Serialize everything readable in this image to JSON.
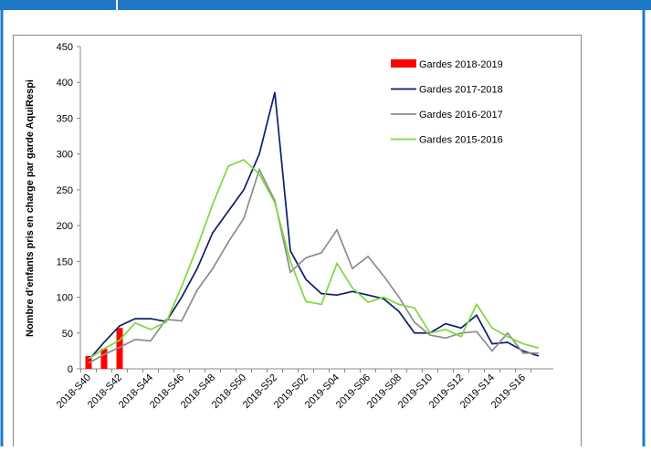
{
  "chart_data": {
    "type": "line",
    "y_label": "Nombre d’enfants pris en charge par garde  AquiRespi",
    "categories": [
      "2018-S40",
      null,
      "2018-S42",
      null,
      "2018-S44",
      null,
      "2018-S46",
      null,
      "2018-S48",
      null,
      "2018-S50",
      null,
      "2018-S52",
      null,
      "2019-S02",
      null,
      "2019-S04",
      null,
      "2019-S06",
      null,
      "2019-S08",
      null,
      "2019-S10",
      null,
      "2019-S12",
      null,
      "2019-S14",
      null,
      "2019-S16",
      null
    ],
    "ylim": [
      0,
      450
    ],
    "yticks": [
      0,
      50,
      100,
      150,
      200,
      250,
      300,
      350,
      400,
      450
    ],
    "series": [
      {
        "name": "Gardes 2018-2019",
        "type": "bar",
        "color": "#ff0000",
        "values": [
          18,
          28,
          57,
          null,
          null,
          null,
          null,
          null,
          null,
          null,
          null,
          null,
          null,
          null,
          null,
          null,
          null,
          null,
          null,
          null,
          null,
          null,
          null,
          null,
          null,
          null,
          null,
          null,
          null,
          null
        ]
      },
      {
        "name": "Gardes 2017-2018",
        "type": "line",
        "color": "#0d1f6b",
        "values": [
          12,
          37,
          60,
          70,
          70,
          66,
          100,
          140,
          190,
          220,
          250,
          300,
          386,
          165,
          125,
          105,
          103,
          108,
          103,
          98,
          80,
          50,
          50,
          63,
          57,
          75,
          35,
          37,
          25,
          18
        ]
      },
      {
        "name": "Gardes 2016-2017",
        "type": "line",
        "color": "#8c8c8c",
        "values": [
          8,
          20,
          30,
          41,
          39,
          69,
          67,
          110,
          140,
          177,
          210,
          278,
          235,
          135,
          155,
          162,
          194,
          140,
          157,
          130,
          100,
          65,
          47,
          43,
          50,
          52,
          25,
          50,
          22,
          22
        ]
      },
      {
        "name": "Gardes 2015-2016",
        "type": "line",
        "color": "#7dd93a",
        "values": [
          14,
          28,
          40,
          64,
          55,
          65,
          115,
          170,
          230,
          283,
          292,
          272,
          232,
          150,
          94,
          90,
          147,
          113,
          93,
          100,
          90,
          85,
          50,
          55,
          45,
          90,
          57,
          45,
          35,
          29
        ]
      }
    ]
  }
}
